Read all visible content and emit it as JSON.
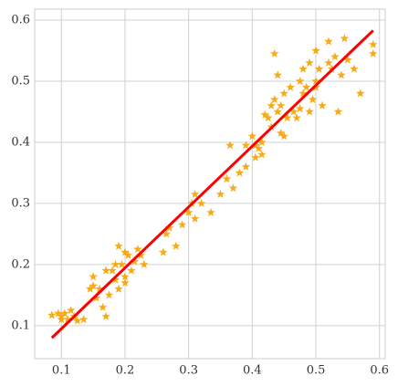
{
  "chart_data": {
    "type": "scatter",
    "grid": true,
    "xlim": [
      0.058,
      0.609
    ],
    "ylim": [
      0.046,
      0.618
    ],
    "xticks": [
      0.1,
      0.2,
      0.3,
      0.4,
      0.5,
      0.6
    ],
    "yticks": [
      0.1,
      0.2,
      0.3,
      0.4,
      0.5,
      0.6
    ],
    "series": [
      {
        "type": "scatter",
        "color": "#f5a300",
        "x": [
          0.085,
          0.095,
          0.1,
          0.1,
          0.105,
          0.11,
          0.115,
          0.12,
          0.125,
          0.135,
          0.145,
          0.15,
          0.15,
          0.155,
          0.16,
          0.165,
          0.17,
          0.17,
          0.175,
          0.18,
          0.185,
          0.19,
          0.19,
          0.195,
          0.2,
          0.2,
          0.205,
          0.21,
          0.215,
          0.22,
          0.225,
          0.23,
          0.2,
          0.185,
          0.26,
          0.265,
          0.27,
          0.28,
          0.29,
          0.3,
          0.305,
          0.31,
          0.31,
          0.32,
          0.335,
          0.35,
          0.36,
          0.365,
          0.37,
          0.38,
          0.39,
          0.39,
          0.4,
          0.405,
          0.41,
          0.415,
          0.415,
          0.42,
          0.425,
          0.43,
          0.43,
          0.435,
          0.435,
          0.44,
          0.44,
          0.445,
          0.45,
          0.45,
          0.455,
          0.46,
          0.465,
          0.47,
          0.475,
          0.48,
          0.48,
          0.485,
          0.49,
          0.49,
          0.495,
          0.5,
          0.5,
          0.5,
          0.505,
          0.51,
          0.52,
          0.52,
          0.525,
          0.53,
          0.535,
          0.54,
          0.545,
          0.55,
          0.56,
          0.57,
          0.59,
          0.59,
          0.405,
          0.445,
          0.475
        ],
        "values": [
          0.117,
          0.12,
          0.11,
          0.115,
          0.12,
          0.11,
          0.125,
          0.115,
          0.108,
          0.11,
          0.16,
          0.18,
          0.165,
          0.145,
          0.16,
          0.13,
          0.115,
          0.19,
          0.15,
          0.19,
          0.175,
          0.23,
          0.16,
          0.2,
          0.18,
          0.22,
          0.215,
          0.19,
          0.205,
          0.225,
          0.215,
          0.2,
          0.17,
          0.2,
          0.22,
          0.25,
          0.26,
          0.23,
          0.265,
          0.285,
          0.3,
          0.315,
          0.275,
          0.3,
          0.285,
          0.315,
          0.34,
          0.395,
          0.325,
          0.35,
          0.36,
          0.395,
          0.41,
          0.375,
          0.39,
          0.4,
          0.38,
          0.445,
          0.44,
          0.46,
          0.425,
          0.47,
          0.545,
          0.51,
          0.45,
          0.415,
          0.41,
          0.48,
          0.44,
          0.49,
          0.45,
          0.44,
          0.5,
          0.48,
          0.52,
          0.49,
          0.53,
          0.45,
          0.47,
          0.49,
          0.55,
          0.5,
          0.52,
          0.46,
          0.565,
          0.53,
          0.52,
          0.54,
          0.45,
          0.51,
          0.57,
          0.535,
          0.52,
          0.48,
          0.56,
          0.545,
          0.395,
          0.46,
          0.455
        ]
      },
      {
        "type": "line",
        "color": "#ff0000",
        "x": [
          0.085,
          0.59
        ],
        "values": [
          0.08,
          0.583
        ]
      }
    ]
  }
}
